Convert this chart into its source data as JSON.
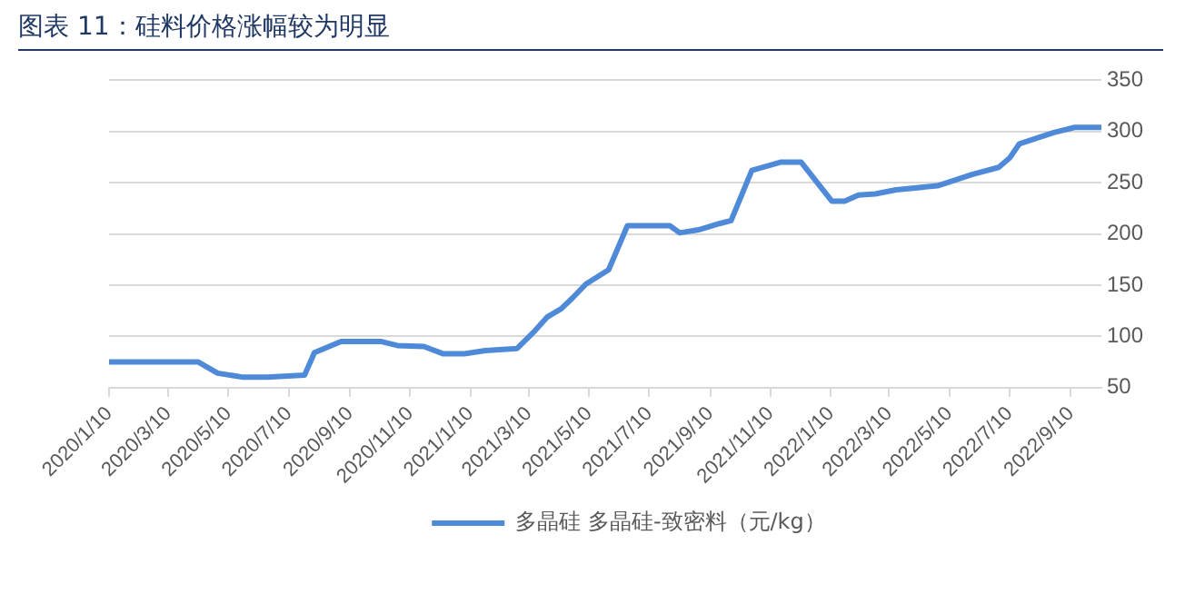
{
  "chart_data": {
    "type": "line",
    "title": "图表 11：硅料价格涨幅较为明显",
    "x": [
      "2020-01-10",
      "2020-04-09",
      "2020-04-29",
      "2020-05-25",
      "2020-06-18",
      "2020-07-26",
      "2020-08-05",
      "2020-09-01",
      "2020-10-11",
      "2020-10-28",
      "2020-11-24",
      "2020-12-13",
      "2021-01-04",
      "2021-01-25",
      "2021-02-26",
      "2021-03-16",
      "2021-03-29",
      "2021-04-12",
      "2021-04-23",
      "2021-05-07",
      "2021-05-30",
      "2021-06-18",
      "2021-07-31",
      "2021-08-10",
      "2021-08-29",
      "2021-09-19",
      "2021-10-01",
      "2021-10-22",
      "2021-11-20",
      "2021-12-11",
      "2022-01-11",
      "2022-01-24",
      "2022-02-07",
      "2022-02-24",
      "2022-03-17",
      "2022-04-28",
      "2022-06-02",
      "2022-06-29",
      "2022-07-10",
      "2022-07-20",
      "2022-08-24",
      "2022-09-14",
      "2022-10-11"
    ],
    "series": [
      {
        "name": "多晶硅 多晶硅-致密料（元/kg）",
        "color": "#4f8ad8",
        "values": [
          75,
          75,
          64,
          60,
          60,
          62,
          84,
          95,
          95,
          91,
          90,
          83,
          83,
          86,
          88,
          105,
          119,
          127,
          137,
          151,
          165,
          208,
          208,
          201,
          204,
          210,
          213,
          262,
          270,
          270,
          232,
          232,
          238,
          239,
          243,
          247,
          258,
          265,
          274,
          288,
          299,
          304,
          304
        ]
      }
    ],
    "xlim": [
      "2020-01-10",
      "2022-10-11"
    ],
    "xticks": [
      {
        "value": "2020-01-10",
        "label": "2020/1/10"
      },
      {
        "value": "2020-03-10",
        "label": "2020/3/10"
      },
      {
        "value": "2020-05-10",
        "label": "2020/5/10"
      },
      {
        "value": "2020-07-10",
        "label": "2020/7/10"
      },
      {
        "value": "2020-09-10",
        "label": "2020/9/10"
      },
      {
        "value": "2020-11-10",
        "label": "2020/11/10"
      },
      {
        "value": "2021-01-10",
        "label": "2021/1/10"
      },
      {
        "value": "2021-03-10",
        "label": "2021/3/10"
      },
      {
        "value": "2021-05-10",
        "label": "2021/5/10"
      },
      {
        "value": "2021-07-10",
        "label": "2021/7/10"
      },
      {
        "value": "2021-09-10",
        "label": "2021/9/10"
      },
      {
        "value": "2021-11-10",
        "label": "2021/11/10"
      },
      {
        "value": "2022-01-10",
        "label": "2022/1/10"
      },
      {
        "value": "2022-03-10",
        "label": "2022/3/10"
      },
      {
        "value": "2022-05-10",
        "label": "2022/5/10"
      },
      {
        "value": "2022-07-10",
        "label": "2022/7/10"
      },
      {
        "value": "2022-09-10",
        "label": "2022/9/10"
      }
    ],
    "ylim": [
      50,
      350
    ],
    "yticks": [
      50,
      100,
      150,
      200,
      250,
      300,
      350
    ],
    "grid": "y",
    "legend": "bottom",
    "marker": "none",
    "line_style": "solid"
  }
}
